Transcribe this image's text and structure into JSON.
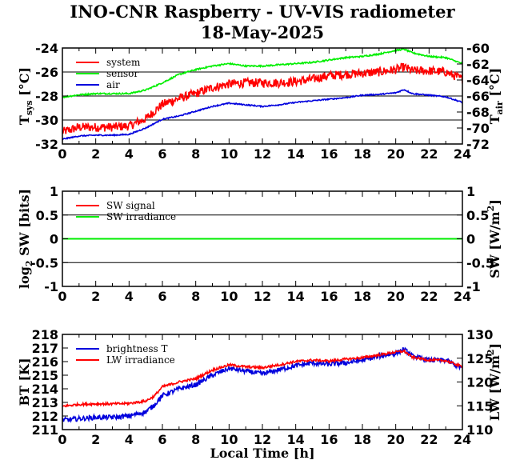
{
  "title": "INO-CNR Raspberry - UV-VIS radiometer",
  "subtitle": "18-May-2025",
  "x_axis": {
    "label": "Local Time [h]",
    "ticks": [
      "0",
      "2",
      "4",
      "6",
      "8",
      "10",
      "12",
      "14",
      "16",
      "18",
      "20",
      "22",
      "24"
    ]
  },
  "colors": {
    "red": "#ff0000",
    "green": "#00ee00",
    "blue": "#0000dd"
  },
  "chart_data": [
    {
      "type": "line",
      "panel": "temperatures",
      "x_range": [
        0,
        24
      ],
      "ylabel_left": "T",
      "ylabel_left_sub": "sys",
      "ylabel_left_unit": " [°C]",
      "ylabel_right": "T",
      "ylabel_right_sub": "air",
      "ylabel_right_unit": " [°C]",
      "ylim_left": [
        -32,
        -24
      ],
      "yticks_left": [
        "-24",
        "-26",
        "-28",
        "-30",
        "-32"
      ],
      "ylim_right": [
        -72,
        -60
      ],
      "yticks_right": [
        "-60",
        "-62",
        "-64",
        "-66",
        "-68",
        "-70",
        "-72"
      ],
      "grid": true,
      "legend": "top-left",
      "series": [
        {
          "name": "system",
          "color": "#ff0000",
          "axis": "left",
          "x": [
            0,
            1,
            2,
            3,
            4,
            4.5,
            5,
            5.5,
            6,
            7,
            8,
            9,
            10,
            11,
            12,
            13,
            14,
            15,
            16,
            17,
            18,
            19,
            20,
            20.5,
            21,
            22,
            23,
            24
          ],
          "y": [
            -31,
            -30.6,
            -30.6,
            -30.6,
            -30.5,
            -30.2,
            -29.9,
            -29.3,
            -28.7,
            -28.2,
            -27.8,
            -27.3,
            -27.0,
            -26.9,
            -26.9,
            -26.9,
            -26.8,
            -26.6,
            -26.3,
            -26.2,
            -26.1,
            -26.0,
            -25.8,
            -25.6,
            -25.9,
            -25.9,
            -26.0,
            -26.6
          ],
          "noise": 0.75
        },
        {
          "name": "sensor",
          "color": "#00ee00",
          "axis": "left",
          "x": [
            0,
            1,
            2,
            3,
            4,
            5,
            6,
            7,
            8,
            9,
            10,
            11,
            12,
            13,
            14,
            15,
            16,
            17,
            18,
            19,
            20,
            20.5,
            21,
            22,
            23,
            24
          ],
          "y": [
            -28.1,
            -27.9,
            -27.8,
            -27.8,
            -27.8,
            -27.5,
            -26.9,
            -26.2,
            -25.8,
            -25.5,
            -25.3,
            -25.5,
            -25.5,
            -25.4,
            -25.3,
            -25.2,
            -25.0,
            -24.8,
            -24.7,
            -24.5,
            -24.2,
            -24.1,
            -24.4,
            -24.7,
            -24.8,
            -25.3
          ],
          "noise": 0.12
        },
        {
          "name": "air",
          "color": "#0000dd",
          "axis": "right",
          "x": [
            0,
            1,
            2,
            3,
            4,
            5,
            6,
            7,
            8,
            9,
            10,
            11,
            12,
            13,
            14,
            15,
            16,
            17,
            18,
            19,
            20,
            20.5,
            21,
            22,
            23,
            24
          ],
          "y": [
            -71.4,
            -71.0,
            -70.9,
            -70.9,
            -70.8,
            -70.0,
            -68.9,
            -68.5,
            -67.9,
            -67.3,
            -66.9,
            -67.1,
            -67.3,
            -67.1,
            -66.8,
            -66.6,
            -66.4,
            -66.2,
            -65.9,
            -65.8,
            -65.6,
            -65.2,
            -65.7,
            -65.9,
            -66.1,
            -66.8
          ],
          "noise": 0.15
        }
      ]
    },
    {
      "type": "line",
      "panel": "shortwave",
      "x_range": [
        0,
        24
      ],
      "ylabel_left": "log",
      "ylabel_left_sub": "2",
      "ylabel_left_unit": " SW [bits]",
      "ylabel_right": "SW [W/m",
      "ylabel_right_sup": "2",
      "ylabel_right_unit": "]",
      "ylim_left": [
        -1,
        1
      ],
      "yticks_left": [
        "1",
        "0.5",
        "0",
        "-0.5",
        "-1"
      ],
      "ylim_right": [
        -1,
        1
      ],
      "yticks_right": [
        "1",
        "0.5",
        "0",
        "-0.5",
        "-1"
      ],
      "grid": true,
      "legend": "top-left",
      "series": [
        {
          "name": "SW signal",
          "color": "#ff0000",
          "axis": "left",
          "x": [
            0,
            24
          ],
          "y": [
            0,
            0
          ],
          "noise": 0
        },
        {
          "name": "SW irradiance",
          "color": "#00ee00",
          "axis": "right",
          "x": [
            0,
            24
          ],
          "y": [
            0,
            0
          ],
          "noise": 0
        }
      ]
    },
    {
      "type": "line",
      "panel": "longwave",
      "x_range": [
        0,
        24
      ],
      "ylabel_left": "BT [K]",
      "ylabel_right": "LW [W/m",
      "ylabel_right_sup": "2",
      "ylabel_right_unit": "]",
      "ylim_left": [
        211,
        218
      ],
      "yticks_left": [
        "218",
        "217",
        "216",
        "215",
        "214",
        "213",
        "212",
        "211"
      ],
      "ylim_right": [
        110,
        130
      ],
      "yticks_right": [
        "130",
        "125",
        "120",
        "115",
        "110"
      ],
      "grid": false,
      "legend": "top-left",
      "series": [
        {
          "name": "brightness T",
          "color": "#0000dd",
          "axis": "left",
          "x": [
            0,
            1,
            2,
            3,
            4,
            5,
            5.5,
            6,
            7,
            8,
            9,
            10,
            11,
            12,
            13,
            14,
            15,
            16,
            17,
            18,
            19,
            20,
            20.5,
            21,
            22,
            23,
            24
          ],
          "y": [
            211.7,
            211.8,
            211.9,
            211.9,
            212.0,
            212.3,
            212.8,
            213.5,
            214.0,
            214.3,
            215.0,
            215.5,
            215.3,
            215.1,
            215.4,
            215.7,
            215.9,
            215.8,
            215.9,
            216.1,
            216.4,
            216.6,
            216.9,
            216.4,
            216.1,
            216.1,
            215.5
          ],
          "noise": 0.35
        },
        {
          "name": "LW irradiance",
          "color": "#ff0000",
          "axis": "right",
          "x": [
            0,
            1,
            2,
            3,
            4,
            5,
            5.5,
            6,
            7,
            8,
            9,
            10,
            11,
            12,
            13,
            14,
            15,
            16,
            17,
            18,
            19,
            20,
            20.5,
            21,
            22,
            23,
            24
          ],
          "y": [
            114.9,
            115.3,
            115.4,
            115.4,
            115.5,
            116.0,
            117.0,
            119.0,
            120.0,
            120.7,
            122.5,
            123.6,
            123.2,
            123.0,
            123.6,
            124.3,
            124.6,
            124.4,
            124.8,
            125.1,
            125.7,
            126.3,
            126.5,
            125.2,
            124.6,
            124.5,
            123.2
          ],
          "noise": 0.5
        }
      ]
    }
  ]
}
